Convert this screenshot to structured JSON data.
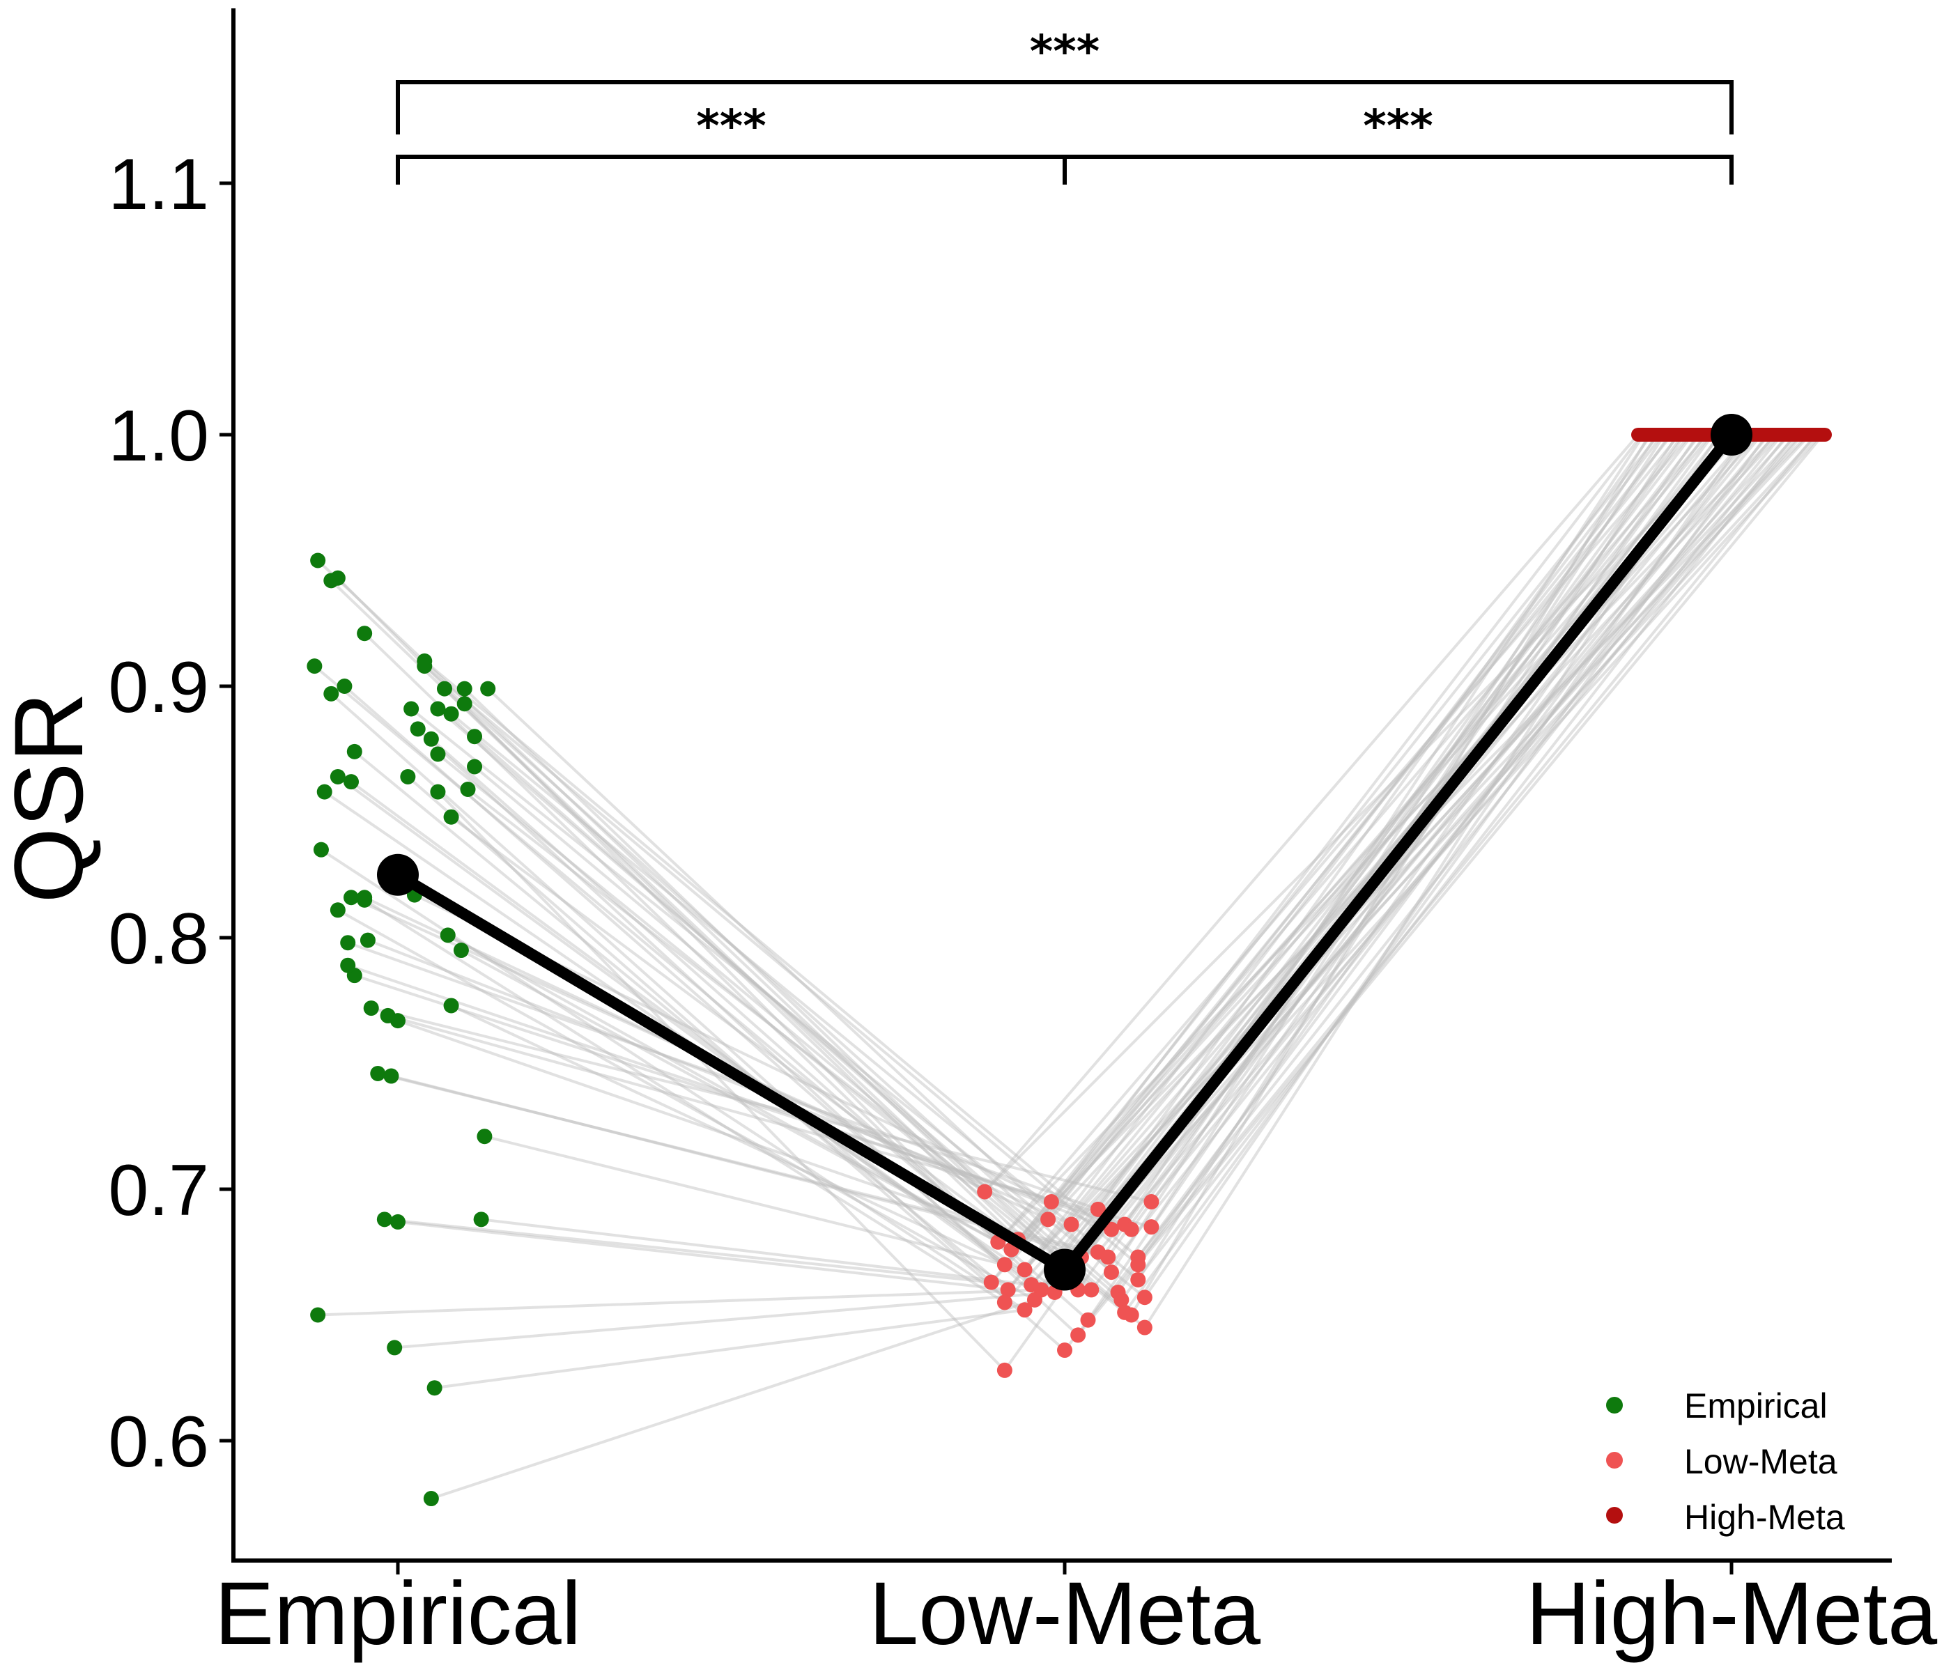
{
  "chart_data": {
    "type": "scatter",
    "ylabel": "QSR",
    "ylim": [
      0.55,
      1.17
    ],
    "yticks": [
      "0.6",
      "0.7",
      "0.8",
      "0.9",
      "1.0",
      "1.1"
    ],
    "categories": [
      "Empirical",
      "Low-Meta",
      "High-Meta"
    ],
    "colors": {
      "Empirical": "#0e7a0d",
      "Low-Meta": "#ef5353",
      "High-Meta": "#b40f0f",
      "mean": "#000000",
      "pair_line": "#bdbdbd"
    },
    "means": [
      0.825,
      0.668,
      1.0
    ],
    "empirical_points": [
      [
        -0.12,
        0.95
      ],
      [
        -0.1,
        0.942
      ],
      [
        -0.09,
        0.943
      ],
      [
        -0.125,
        0.908
      ],
      [
        -0.08,
        0.9
      ],
      [
        -0.05,
        0.921
      ],
      [
        -0.1,
        0.897
      ],
      [
        -0.065,
        0.874
      ],
      [
        -0.09,
        0.864
      ],
      [
        -0.07,
        0.862
      ],
      [
        -0.11,
        0.858
      ],
      [
        -0.115,
        0.835
      ],
      [
        -0.09,
        0.811
      ],
      [
        -0.05,
        0.815
      ],
      [
        -0.05,
        0.816
      ],
      [
        0.025,
        0.817
      ],
      [
        -0.07,
        0.816
      ],
      [
        -0.075,
        0.798
      ],
      [
        -0.045,
        0.799
      ],
      [
        -0.065,
        0.785
      ],
      [
        -0.075,
        0.789
      ],
      [
        -0.04,
        0.772
      ],
      [
        -0.015,
        0.769
      ],
      [
        -0.0,
        0.767
      ],
      [
        -0.03,
        0.746
      ],
      [
        -0.01,
        0.745
      ],
      [
        0.04,
        0.91
      ],
      [
        0.04,
        0.908
      ],
      [
        0.07,
        0.899
      ],
      [
        0.1,
        0.899
      ],
      [
        0.135,
        0.899
      ],
      [
        0.1,
        0.893
      ],
      [
        0.06,
        0.891
      ],
      [
        0.08,
        0.889
      ],
      [
        0.02,
        0.891
      ],
      [
        0.03,
        0.883
      ],
      [
        0.05,
        0.879
      ],
      [
        0.06,
        0.873
      ],
      [
        0.115,
        0.88
      ],
      [
        0.115,
        0.868
      ],
      [
        0.015,
        0.864
      ],
      [
        0.06,
        0.858
      ],
      [
        0.105,
        0.859
      ],
      [
        0.08,
        0.848
      ],
      [
        0.075,
        0.801
      ],
      [
        0.095,
        0.795
      ],
      [
        0.08,
        0.773
      ],
      [
        0.13,
        0.721
      ],
      [
        -0.02,
        0.688
      ],
      [
        0.0,
        0.687
      ],
      [
        0.125,
        0.688
      ],
      [
        -0.12,
        0.65
      ],
      [
        -0.005,
        0.637
      ],
      [
        0.055,
        0.621
      ],
      [
        0.05,
        0.577
      ]
    ],
    "lowmeta_points": [
      [
        -0.12,
        0.699
      ],
      [
        -0.07,
        0.68
      ],
      [
        -0.1,
        0.679
      ],
      [
        -0.08,
        0.676
      ],
      [
        -0.09,
        0.67
      ],
      [
        -0.06,
        0.668
      ],
      [
        -0.11,
        0.663
      ],
      [
        -0.085,
        0.66
      ],
      [
        -0.05,
        0.662
      ],
      [
        -0.035,
        0.66
      ],
      [
        -0.015,
        0.659
      ],
      [
        -0.06,
        0.652
      ],
      [
        -0.045,
        0.656
      ],
      [
        -0.09,
        0.655
      ],
      [
        -0.025,
        0.688
      ],
      [
        -0.02,
        0.695
      ],
      [
        0.01,
        0.686
      ],
      [
        0.05,
        0.692
      ],
      [
        0.07,
        0.684
      ],
      [
        0.09,
        0.686
      ],
      [
        0.1,
        0.684
      ],
      [
        0.13,
        0.695
      ],
      [
        0.13,
        0.685
      ],
      [
        0.025,
        0.673
      ],
      [
        0.05,
        0.675
      ],
      [
        0.065,
        0.673
      ],
      [
        0.11,
        0.673
      ],
      [
        0.11,
        0.67
      ],
      [
        0.02,
        0.66
      ],
      [
        0.04,
        0.66
      ],
      [
        0.07,
        0.667
      ],
      [
        0.08,
        0.659
      ],
      [
        0.085,
        0.656
      ],
      [
        0.11,
        0.664
      ],
      [
        0.12,
        0.657
      ],
      [
        0.02,
        0.642
      ],
      [
        0.035,
        0.648
      ],
      [
        0.09,
        0.651
      ],
      [
        0.1,
        0.65
      ],
      [
        0.12,
        0.645
      ],
      [
        0.0,
        0.636
      ],
      [
        -0.09,
        0.628
      ]
    ],
    "highmeta_x_range": [
      -0.14,
      0.14
    ],
    "significance": [
      {
        "from": 0,
        "to": 1,
        "label": "***"
      },
      {
        "from": 1,
        "to": 2,
        "label": "***"
      },
      {
        "from": 0,
        "to": 2,
        "label": "***"
      }
    ],
    "legend": [
      "Empirical",
      "Low-Meta",
      "High-Meta"
    ],
    "legend_position": "bottom-right",
    "grid": false
  }
}
